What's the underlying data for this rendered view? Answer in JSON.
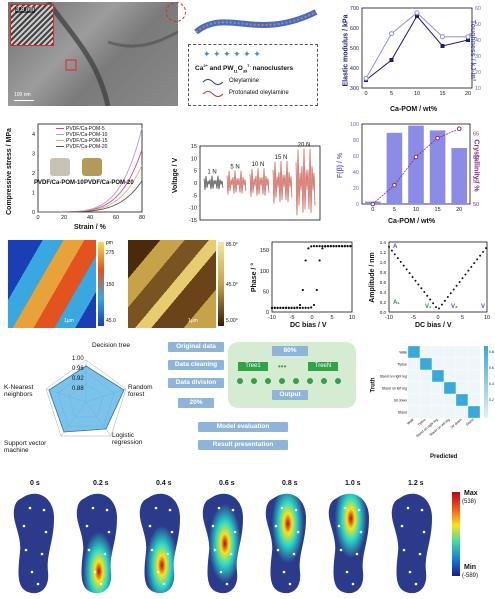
{
  "tem": {
    "inset_scale": "3.8 nm",
    "scale_bar": "100 nm",
    "legend": {
      "title_part1": "Ca",
      "title_sup1": "2+",
      "title_part2": " and PW",
      "title_sub1": "11",
      "title_part3": "O",
      "title_sub2": "39",
      "title_sup2": "7-",
      "title_part4": " nanoclusters",
      "item1": "Oleylamine",
      "item2": "Protonated oleylamine"
    }
  },
  "chart_modulus": {
    "type": "line",
    "xlabel": "Ca-POM / wt%",
    "ylabel_left": "Elastic modulus / kPa",
    "ylabel_right": "Toughness / kJ·m³",
    "x": [
      0,
      5,
      10,
      15,
      20
    ],
    "xticks": [
      "0",
      "5",
      "10",
      "15",
      "20"
    ],
    "yticks_left": [
      "300",
      "400",
      "500",
      "600",
      "700"
    ],
    "yticks_right": [
      "10",
      "20",
      "30",
      "40",
      "50",
      "60"
    ],
    "ylim_left": [
      300,
      700
    ],
    "ylim_right": [
      10,
      60
    ],
    "series": [
      {
        "values": [
          340,
          440,
          660,
          510,
          540
        ],
        "color": "#1a1a7a"
      },
      {
        "values": [
          16,
          44,
          57,
          42,
          42
        ],
        "color": "#8f8fe6"
      }
    ]
  },
  "chart_stress": {
    "type": "line",
    "xlabel": "Strain / %",
    "ylabel": "Compressive stress / MPa",
    "xticks": [
      "0",
      "20",
      "40",
      "60",
      "80"
    ],
    "yticks": [
      "0",
      "1",
      "2",
      "3",
      "4"
    ],
    "xlim": [
      0,
      80
    ],
    "ylim": [
      0,
      4.5
    ],
    "legend": [
      "PVDF/Ca-POM-5",
      "PVDF/Ca-POM-10",
      "PVDF/Ca-POM-15",
      "PVDF/Ca-POM-20"
    ],
    "photo_labels": [
      "PVDF/Ca-POM-10",
      "PVDF/Ca-POM-20"
    ],
    "series_colors": [
      "#d34a8a",
      "#b19ae0",
      "#e0b070",
      "#555555"
    ]
  },
  "chart_voltage": {
    "ylabel": "Voltage / V",
    "xticks": [],
    "yticks": [
      "-15",
      "-10",
      "-5",
      "0",
      "5",
      "10",
      "15"
    ],
    "force_labels": [
      "1 N",
      "5 N",
      "10 N",
      "15 N",
      "20 N"
    ],
    "colors": [
      "#222222",
      "#c0392b",
      "#c0392b",
      "#c0392b",
      "#c0392b"
    ]
  },
  "chart_beta": {
    "type": "bar",
    "xlabel": "Ca-POM / wt%",
    "ylabel_left": "F(β) / %",
    "ylabel_right": "Crystallinity / %",
    "categories": [
      "0",
      "5",
      "10",
      "15",
      "20"
    ],
    "values": [
      3,
      89,
      98,
      92,
      70
    ],
    "crystallinity": [
      50,
      54,
      60,
      64,
      66
    ],
    "yticks_left": [
      "0",
      "20",
      "40",
      "60",
      "80",
      "100"
    ],
    "yticks_right": [
      "50",
      "55",
      "60",
      "65"
    ],
    "ylim_left": [
      0,
      100
    ],
    "ylim_right": [
      50,
      67
    ],
    "bar_color": "#8c8ce6"
  },
  "pfm_images": {
    "scale1": "1μm",
    "scale2": "1μm",
    "colorbar1_ticks": [
      "pm",
      "275",
      "150",
      "45.0"
    ],
    "colorbar2_ticks": [
      "85.0°",
      "45.0°",
      "5.00°"
    ]
  },
  "chart_phase": {
    "xlabel": "DC bias / V",
    "ylabel": "Phase / °",
    "xticks": [
      "-10",
      "-5",
      "0",
      "5",
      "10"
    ],
    "yticks": [
      "0",
      "50",
      "100",
      "150"
    ]
  },
  "chart_amplitude": {
    "xlabel": "DC bias / V",
    "ylabel": "Amplitude / nm",
    "xticks": [
      "-10",
      "-5",
      "0",
      "5",
      "10"
    ],
    "yticks": [
      "0.0",
      "0.2",
      "0.4",
      "0.6",
      "0.8",
      "1.0",
      "1.2",
      "1.4"
    ],
    "annotations": [
      "A",
      "A₁",
      "V₁",
      "V₂",
      "V"
    ]
  },
  "radar": {
    "labels": [
      "Decision tree",
      "Random forest",
      "Logistic regression",
      "Support vector machine",
      "K-Nearest neighbors"
    ],
    "ticks": [
      "1.00",
      "0.96",
      "0.92",
      "0.88"
    ]
  },
  "flow": {
    "original": "Original data",
    "cleaning": "Data cleaning",
    "division": "Data division",
    "pct80": "80%",
    "pct20": "20%",
    "tree1": "Tree1",
    "treeN": "TreeN",
    "dots": "•••",
    "output": "Output",
    "evaluation": "Model evaluation",
    "result": "Result presentation"
  },
  "confusion": {
    "xlabel": "Predicted",
    "ylabel": "Truth",
    "classes": [
      "Walk",
      "Tiptoe",
      "Stand on right leg",
      "Stand on left leg",
      "Sit down",
      "Stand"
    ],
    "colorbar_ticks": [
      "0.8",
      "0.6",
      "0.4",
      "0.2"
    ]
  },
  "insoles": {
    "times": [
      "0 s",
      "0.2 s",
      "0.4 s",
      "0.6 s",
      "0.8 s",
      "1.0 s",
      "1.2 s"
    ],
    "colorbar_max": "Max",
    "colorbar_max_val": "(538)",
    "colorbar_min": "Min",
    "colorbar_min_val": "(-589)"
  }
}
